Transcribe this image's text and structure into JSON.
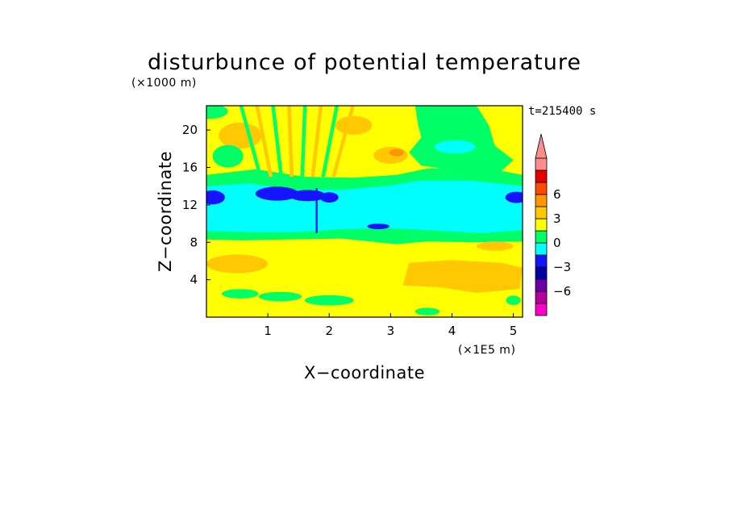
{
  "chart_data": {
    "type": "heatmap",
    "title": "disturbunce of potential temperature",
    "time_label": "t=215400 s",
    "xlabel": "X−coordinate",
    "ylabel": "Z−coordinate",
    "x_unit": "(×1E5 m)",
    "y_unit": "(×1000 m)",
    "xlim": [
      0,
      5.15
    ],
    "ylim": [
      0,
      22.6
    ],
    "x_ticks": [
      {
        "value": 1,
        "label": "1"
      },
      {
        "value": 2,
        "label": "2"
      },
      {
        "value": 3,
        "label": "3"
      },
      {
        "value": 4,
        "label": "4"
      },
      {
        "value": 5,
        "label": "5"
      }
    ],
    "y_ticks": [
      {
        "value": 4,
        "label": "4"
      },
      {
        "value": 8,
        "label": "8"
      },
      {
        "value": 12,
        "label": "12"
      },
      {
        "value": 16,
        "label": "16"
      },
      {
        "value": 20,
        "label": "20"
      }
    ],
    "colorbar": {
      "levels": [
        -9,
        -7.5,
        -6,
        -4.5,
        -3,
        -1.5,
        0,
        1.5,
        3,
        4.5,
        6,
        7.5,
        9
      ],
      "colors": [
        "#ff00c8",
        "#b4009c",
        "#6a00a8",
        "#0000a0",
        "#1414ff",
        "#00ffff",
        "#00ff66",
        "#ffff00",
        "#ffc800",
        "#ff9600",
        "#ff4b00",
        "#e60000",
        "#ff8c8c"
      ],
      "extend": "max",
      "tick_labels": [
        {
          "value": 6,
          "label": "6"
        },
        {
          "value": 3,
          "label": "3"
        },
        {
          "value": 0,
          "label": "0"
        },
        {
          "value": -3,
          "label": "−3"
        },
        {
          "value": -6,
          "label": "−6"
        }
      ]
    },
    "regions": [
      {
        "name": "lower-cool-band",
        "level": -1.5,
        "x": [
          0,
          5.15
        ],
        "z": [
          8.8,
          14.5
        ]
      },
      {
        "name": "upper-cool-layer",
        "level": -1.5,
        "x": [
          3.5,
          4.6
        ],
        "z": [
          15.3,
          18.6
        ]
      },
      {
        "name": "upper-green-zone",
        "level": 0,
        "x": [
          3.4,
          4.9
        ],
        "z": [
          15.0,
          22.6
        ]
      },
      {
        "name": "lower-warm-zone",
        "level": 1.5,
        "x": [
          3.2,
          5.15
        ],
        "z": [
          2.5,
          5.8
        ]
      },
      {
        "name": "strong-cold-core",
        "level": -3,
        "x": [
          0.8,
          2.1
        ],
        "z": [
          11.9,
          13.4
        ]
      },
      {
        "name": "warm-spot",
        "level": 3,
        "x": [
          3.0,
          3.2
        ],
        "z": [
          17.0,
          17.9
        ]
      }
    ]
  }
}
